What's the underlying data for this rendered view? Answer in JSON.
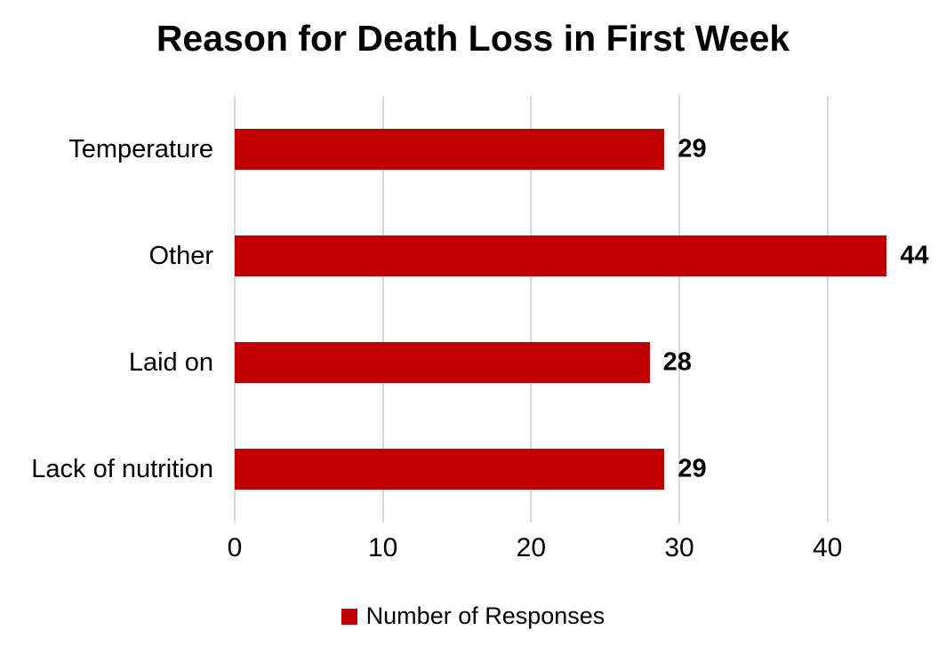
{
  "chart_data": {
    "type": "bar",
    "orientation": "horizontal",
    "title": "Reason for Death Loss in First Week",
    "categories": [
      "Temperature",
      "Other",
      "Laid on",
      "Lack of nutrition"
    ],
    "values": [
      29,
      44,
      28,
      29
    ],
    "series_name": "Number of Responses",
    "x_ticks": [
      0,
      10,
      20,
      30,
      40
    ],
    "xlim": [
      0,
      45
    ],
    "data_labels": [
      29,
      44,
      28,
      29
    ],
    "legend_position": "bottom",
    "grid": "vertical-major",
    "colors": {
      "bar": "#c00000",
      "gridline": "#d9d9d9",
      "text": "#000000",
      "background": "#ffffff"
    }
  },
  "legend": {
    "label": "Number of Responses"
  }
}
